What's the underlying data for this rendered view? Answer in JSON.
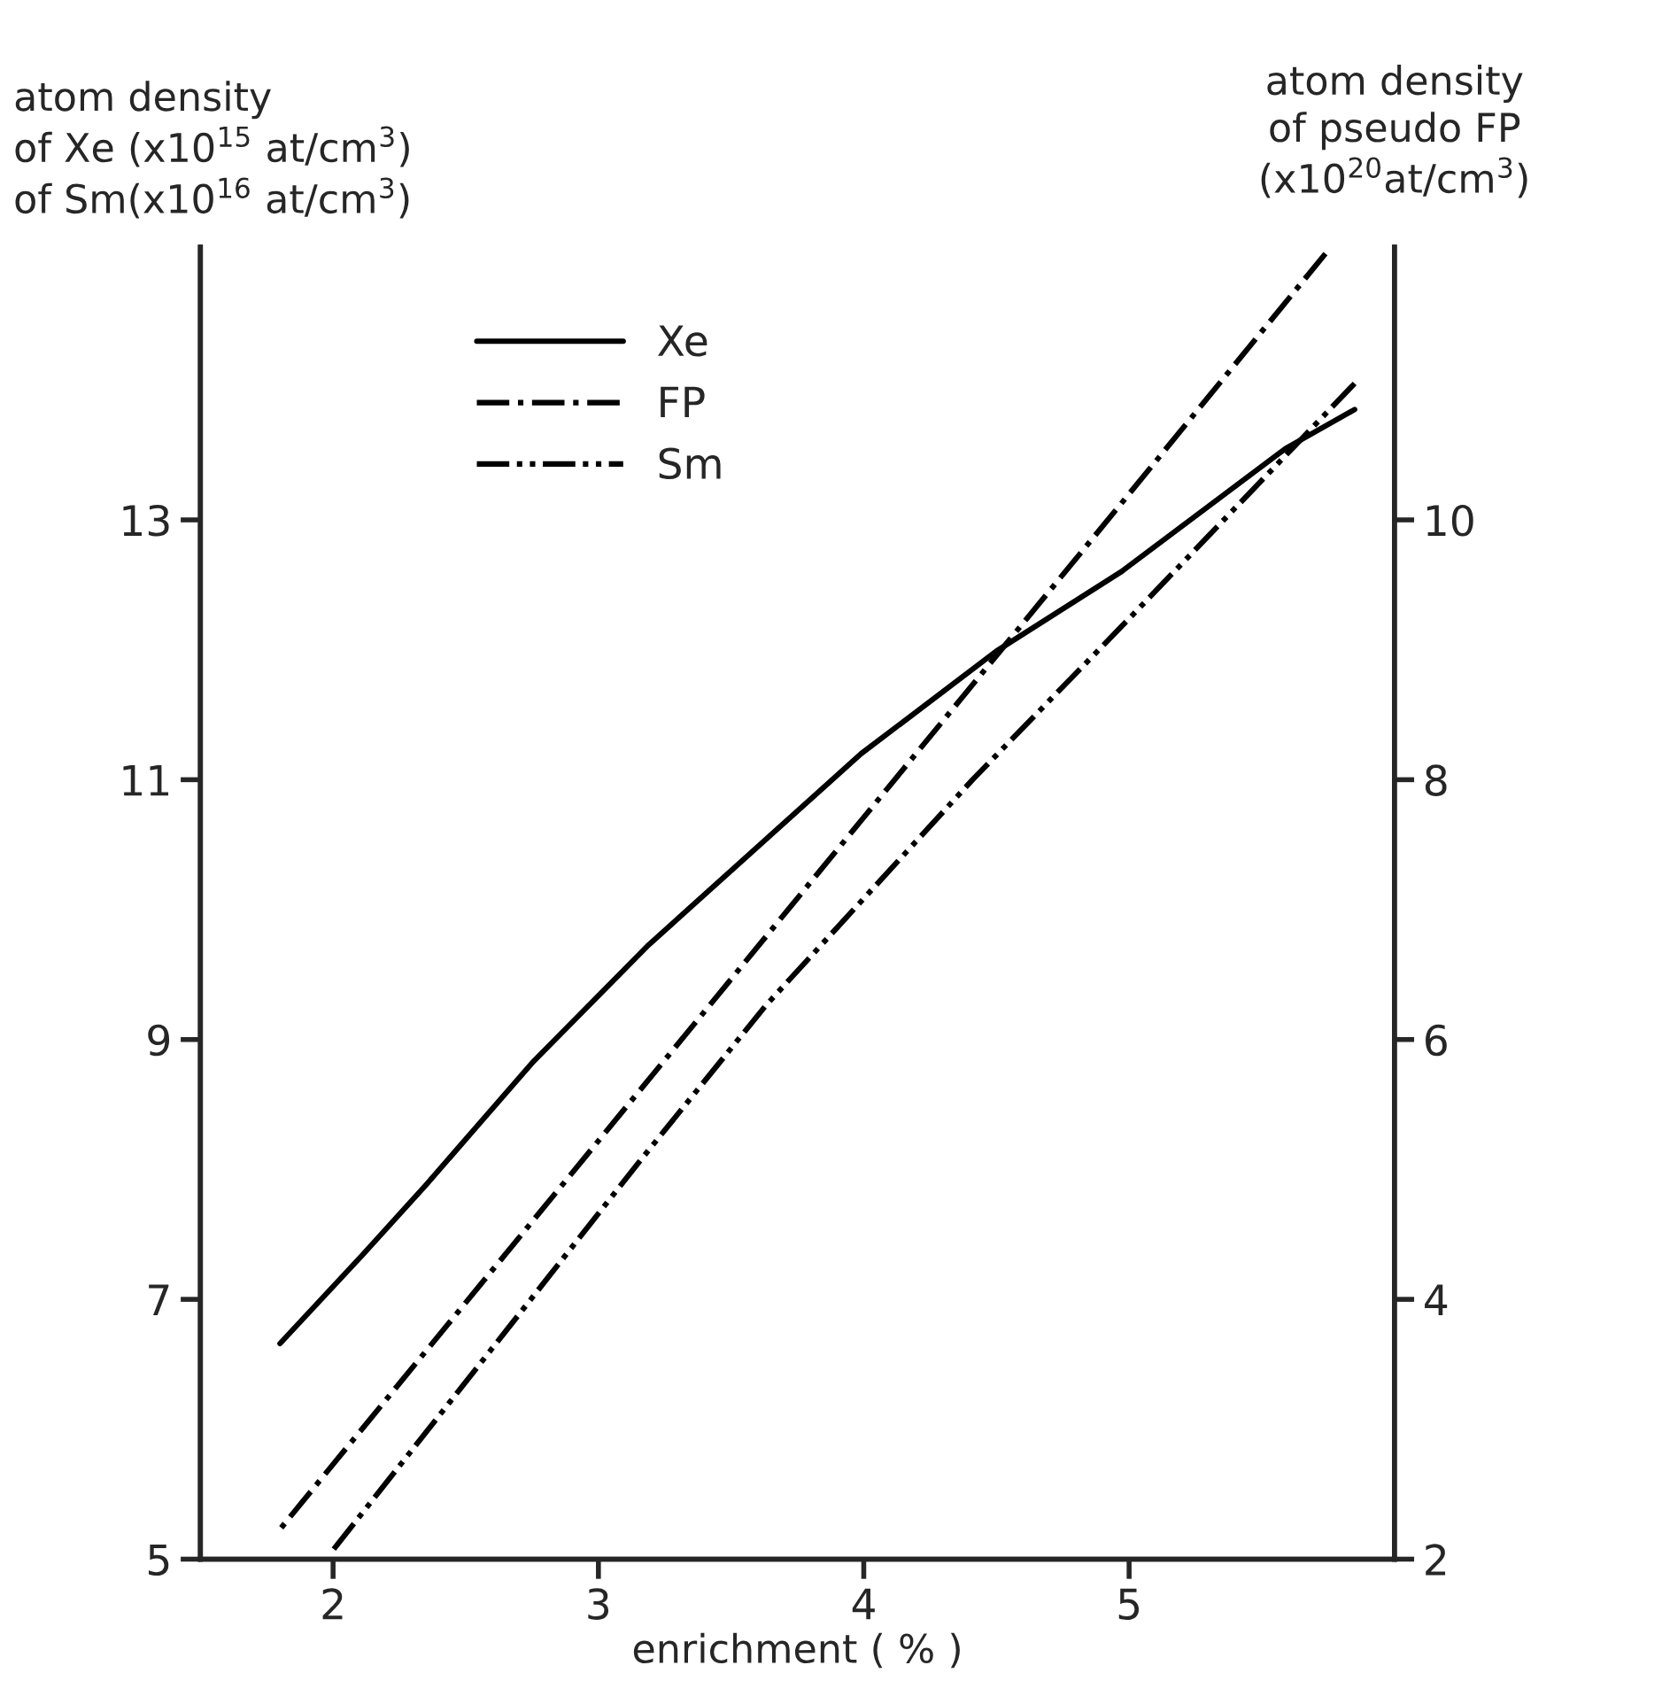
{
  "chart_data": {
    "type": "line",
    "xlabel": "enrichment ( % )",
    "ylabel": "atom density\nof Xe (x10$^{15}$ at/cm$^{3}$)\nof Sm(x10$^{16}$ at/cm$^{3}$)",
    "y2label": "atom density\nof pseudo FP\n(x10$^{20}$at/cm$^{3}$)",
    "xlim": [
      1.5,
      6.0
    ],
    "xticks": [
      2,
      3,
      4,
      5
    ],
    "ylim": [
      5,
      15.1
    ],
    "yticks": [
      5,
      7,
      9,
      11,
      13
    ],
    "y2lim": [
      2,
      12.1
    ],
    "y2ticks": [
      2,
      4,
      6,
      8,
      10
    ],
    "grid": false,
    "legend": "top left",
    "series": [
      {
        "name": "Xe",
        "color": "#000000",
        "line_style": "solid",
        "x": [
          1.8,
          2.11,
          2.35,
          2.75,
          3.19,
          3.99,
          4.5,
          4.97,
          5.59,
          5.85
        ],
        "values": [
          6.66,
          7.34,
          7.88,
          8.82,
          9.73,
          11.2,
          11.99,
          12.6,
          13.55,
          13.85
        ]
      },
      {
        "name": "FP",
        "color": "#000000",
        "line_style": "dashdot",
        "axis": "y2",
        "x": [
          1.8,
          2.0,
          3.0,
          4.0,
          5.0,
          5.74
        ],
        "values": [
          2.23,
          2.73,
          5.22,
          7.71,
          10.2,
          12.05
        ]
      },
      {
        "name": "Sm",
        "color": "#000000",
        "line_style": "dashdotdot",
        "x": [
          2.0,
          3.17,
          3.63,
          4.41,
          5.0,
          5.85
        ],
        "values": [
          5.07,
          8.1,
          9.26,
          11.0,
          12.24,
          14.05
        ]
      }
    ]
  }
}
